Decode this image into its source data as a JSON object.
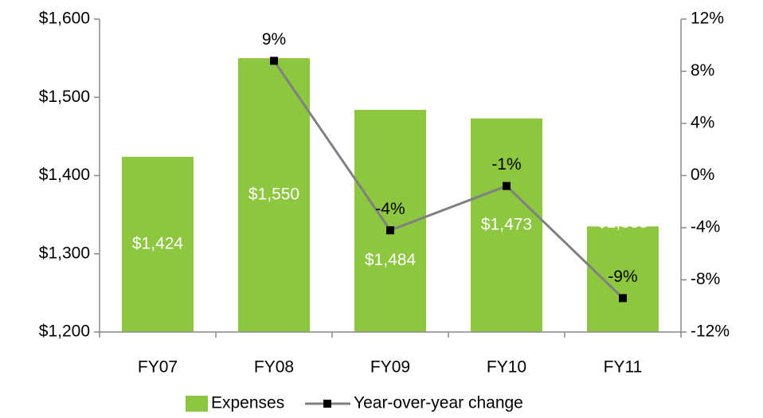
{
  "chart_data": {
    "type": "bar",
    "categories": [
      "FY07",
      "FY08",
      "FY09",
      "FY10",
      "FY11"
    ],
    "series": [
      {
        "name": "Expenses",
        "type": "bar",
        "color": "#8dc63f",
        "values": [
          1424,
          1550,
          1484,
          1473,
          1335
        ],
        "value_labels": [
          "$1,424",
          "$1,550",
          "$1,484",
          "$1,473",
          "$1,335"
        ]
      },
      {
        "name": "Year-over-year change",
        "type": "line",
        "axis": "y2",
        "color": "#808080",
        "marker_color": "#000000",
        "values": [
          null,
          8.8,
          -4.2,
          -0.8,
          -9.4
        ],
        "value_labels": [
          null,
          "9%",
          "-4%",
          "-1%",
          "-9%"
        ]
      }
    ],
    "ylim": [
      1200,
      1600
    ],
    "yticks": [
      {
        "value": 1200,
        "label": "$1,200"
      },
      {
        "value": 1300,
        "label": "$1,300"
      },
      {
        "value": 1400,
        "label": "$1,400"
      },
      {
        "value": 1500,
        "label": "$1,500"
      },
      {
        "value": 1600,
        "label": "$1,600"
      }
    ],
    "y2lim": [
      -12,
      12
    ],
    "y2ticks": [
      {
        "value": -12,
        "label": "-12%"
      },
      {
        "value": -8,
        "label": "-8%"
      },
      {
        "value": -4,
        "label": "-4%"
      },
      {
        "value": 0,
        "label": "0%"
      },
      {
        "value": 4,
        "label": "4%"
      },
      {
        "value": 8,
        "label": "8%"
      },
      {
        "value": 12,
        "label": "12%"
      }
    ],
    "grid": false,
    "legend": "bottom"
  }
}
